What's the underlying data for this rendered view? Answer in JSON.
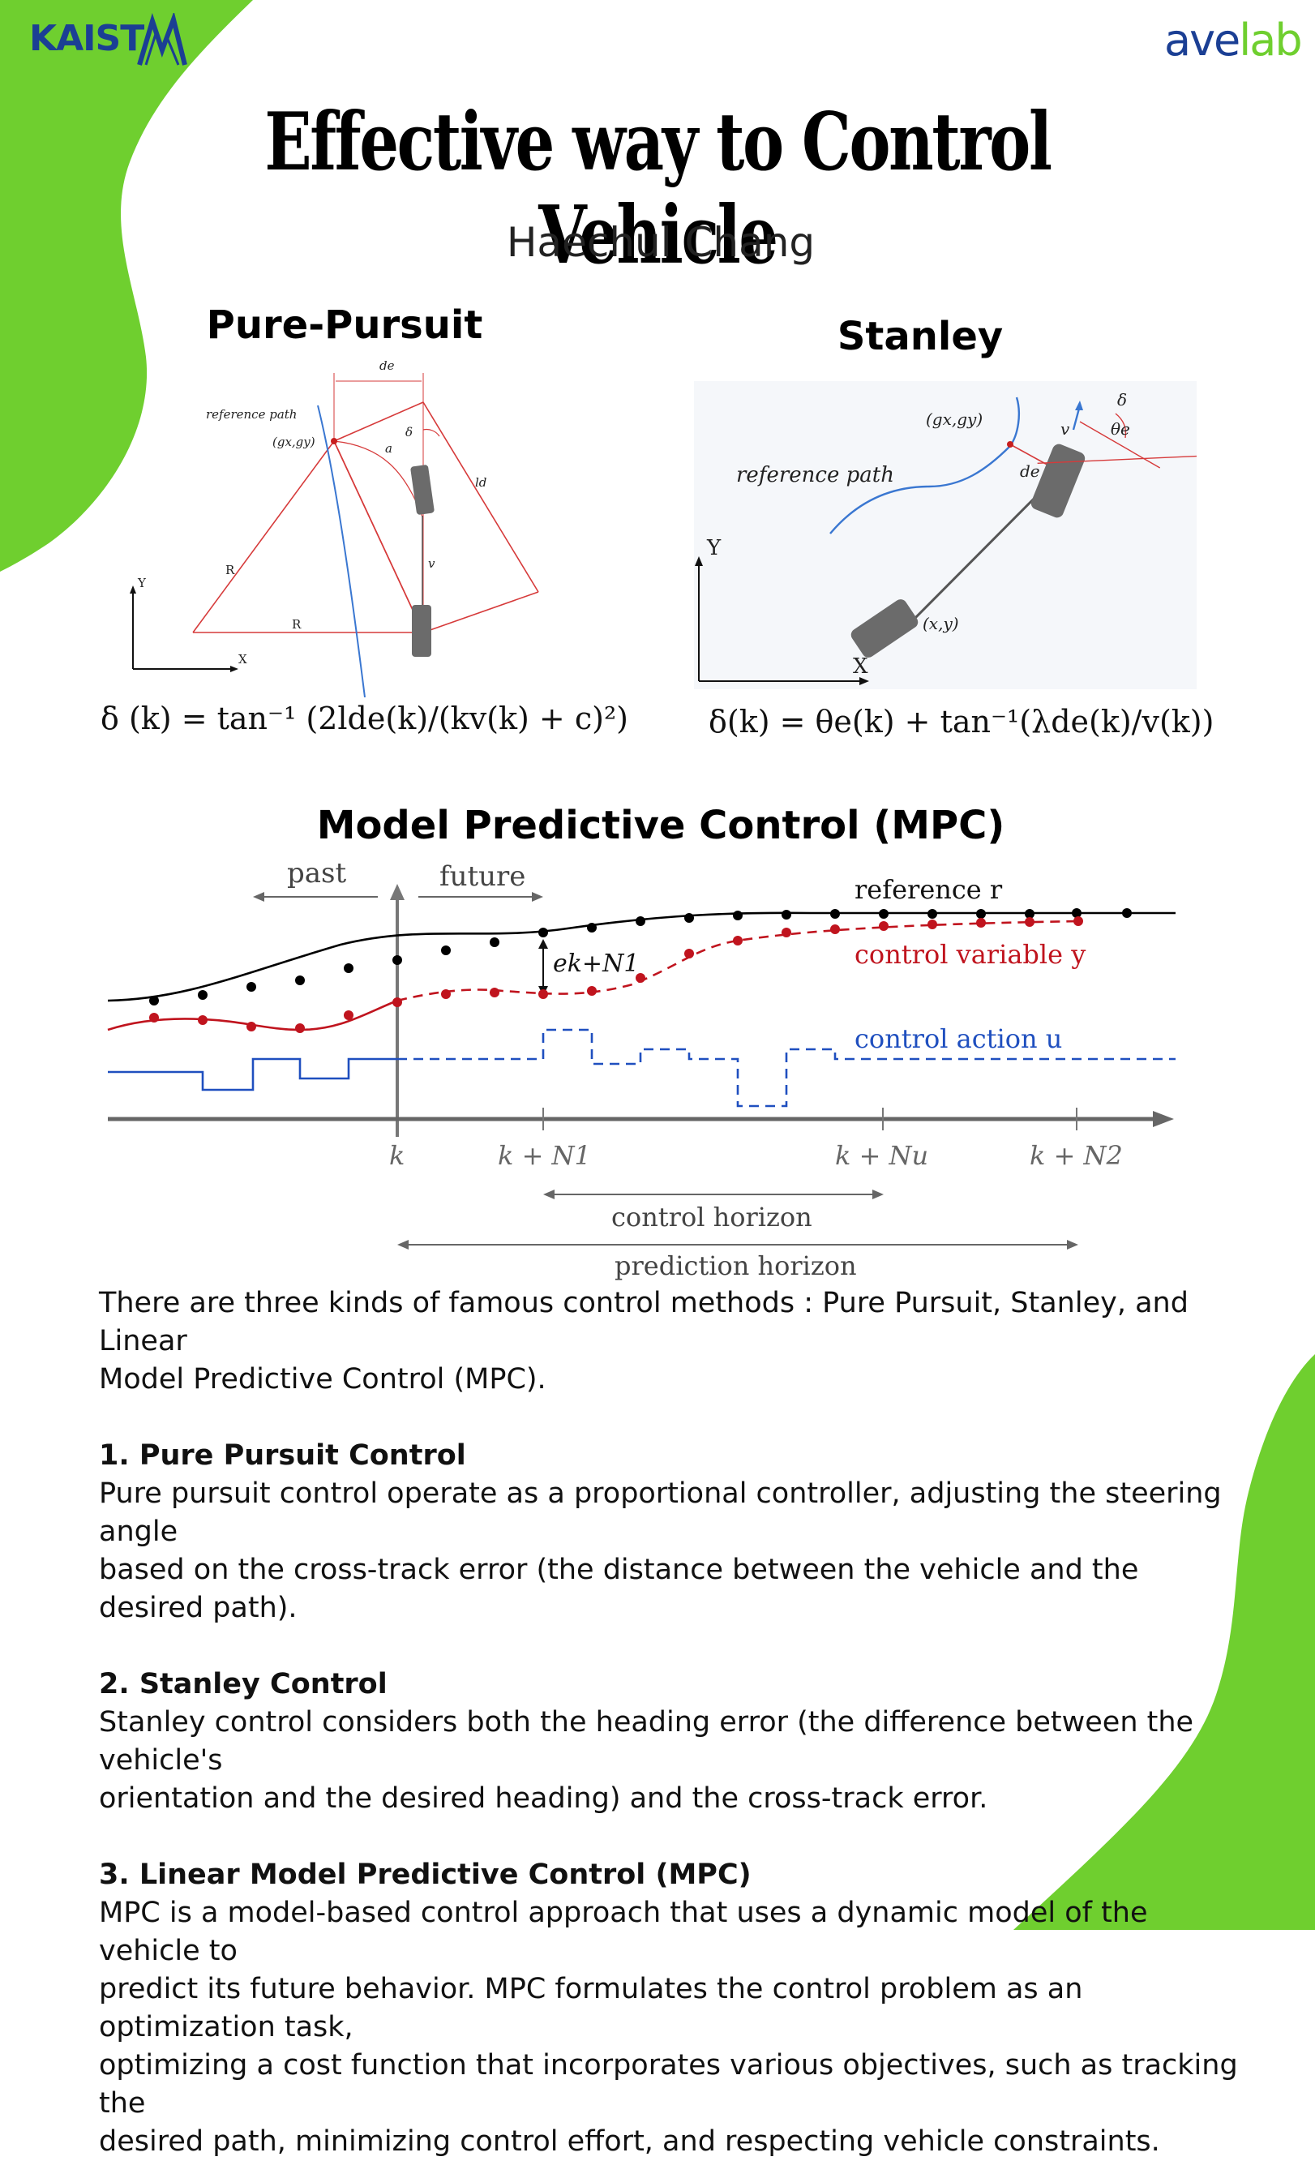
{
  "brand": {
    "left_logo": "KAIST",
    "right_logo_a": "ave",
    "right_logo_b": "lab",
    "green": "#6fcf2f",
    "blue": "#1b3f94"
  },
  "title": "Effective way to Control Vehicle",
  "author": "Haechul Chang",
  "pure_pursuit": {
    "heading": "Pure-Pursuit",
    "labels": {
      "ref_path": "reference path",
      "goal": "(gx,gy)",
      "de": "de",
      "delta": "δ",
      "a": "a",
      "ld": "ld",
      "v": "v",
      "R1": "R",
      "R2": "R",
      "y": "Y",
      "x": "X"
    },
    "formula": "δ (k) = tan⁻¹ (2lde(k)/(kv(k) + c)²)"
  },
  "stanley": {
    "heading": "Stanley",
    "labels": {
      "ref_path": "reference path",
      "goal": "(gx,gy)",
      "de": "de",
      "v": "v",
      "delta": "δ",
      "theta": "θe",
      "pos": "(x,y)",
      "y": "Y",
      "x": "X"
    },
    "formula": "δ(k) = θe(k) + tan⁻¹(λde(k)/v(k))"
  },
  "mpc": {
    "heading": "Model Predictive Control (MPC)",
    "labels": {
      "past": "past",
      "future": "future",
      "reference": "reference r",
      "control_variable": "control variable y",
      "control_action": "control action u",
      "error": "ek+N1",
      "tick_k": "k",
      "tick_n1": "k + N1",
      "tick_nu": "k + Nu",
      "tick_n2": "k + N2",
      "control_horizon": "control horizon",
      "prediction_horizon": "prediction horizon"
    },
    "colors": {
      "reference": "#000000",
      "control_variable": "#c0141e",
      "control_action": "#1f4fbf"
    }
  },
  "text": {
    "intro_1": "There are three kinds of famous control methods : Pure Pursuit, Stanley,  and Linear",
    "intro_2": "Model Predictive Control (MPC).",
    "h1": "1. Pure Pursuit Control",
    "p1_1": "Pure pursuit control operate as a proportional controller, adjusting the steering angle",
    "p1_2": "based on the cross-track error (the distance between the vehicle and the desired path).",
    "h2": "2. Stanley Control",
    "p2_1": "Stanley control considers both the heading error (the difference between the vehicle's",
    "p2_2": "orientation and the desired heading) and the cross-track error.",
    "h3": "3. Linear Model Predictive Control (MPC)",
    "p3_1": "MPC is a model-based control approach that uses a dynamic model of the vehicle to",
    "p3_2": "predict its future behavior. MPC formulates the control problem as an optimization task,",
    "p3_3": "optimizing a cost function that incorporates various objectives, such as tracking the",
    "p3_4": "desired path, minimizing control effort, and respecting vehicle constraints."
  }
}
